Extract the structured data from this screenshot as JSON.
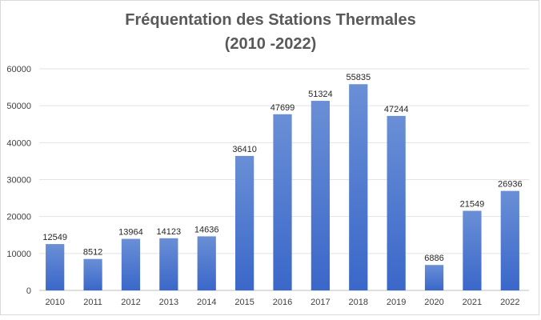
{
  "chart_data": {
    "type": "bar",
    "title_line1": "Fréquentation des Stations Thermales",
    "title_line2": "(2010 -2022)",
    "xlabel": "",
    "ylabel": "",
    "ylim": [
      0,
      60000
    ],
    "yticks": [
      0,
      10000,
      20000,
      30000,
      40000,
      50000,
      60000
    ],
    "grid": true,
    "legend": "none",
    "bar_color_top": "#6a8fd6",
    "bar_color_bottom": "#3a67c9",
    "categories": [
      "2010",
      "2011",
      "2012",
      "2013",
      "2014",
      "2015",
      "2016",
      "2017",
      "2018",
      "2019",
      "2020",
      "2021",
      "2022"
    ],
    "values": [
      12549,
      8512,
      13964,
      14123,
      14636,
      36410,
      47699,
      51324,
      55835,
      47244,
      6886,
      21549,
      26936
    ]
  }
}
